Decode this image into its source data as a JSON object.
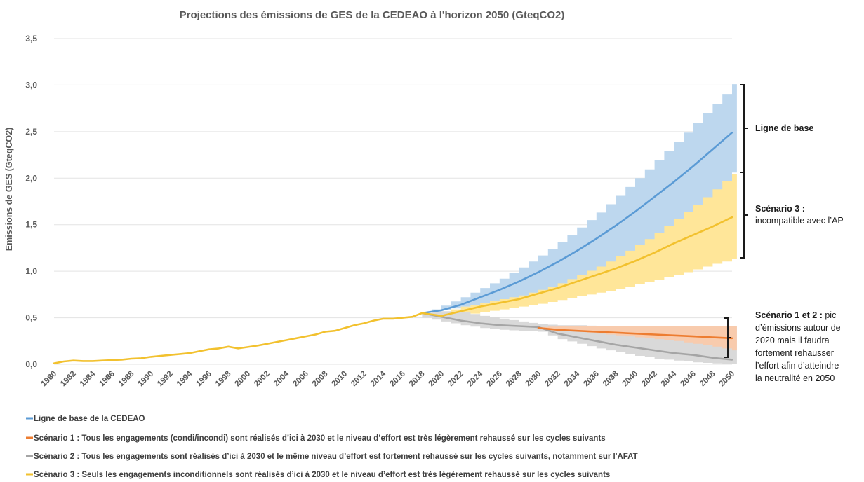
{
  "chart_data": {
    "type": "line",
    "title": "Projections des émissions de GES de la CEDEAO à l'horizon 2050 (GteqCO2)",
    "ylabel": "Emissions de GES (GteqCO2)",
    "xlabel": "",
    "ylim": [
      0,
      3.5
    ],
    "yticks": [
      "0,0",
      "0,5",
      "1,0",
      "1,5",
      "2,0",
      "2,5",
      "3,0",
      "3,5"
    ],
    "yticks_values": [
      0,
      0.5,
      1.0,
      1.5,
      2.0,
      2.5,
      3.0,
      3.5
    ],
    "xlim": [
      1980,
      2050
    ],
    "xticks": [
      1980,
      1982,
      1984,
      1986,
      1988,
      1990,
      1992,
      1994,
      1996,
      1998,
      2000,
      2002,
      2004,
      2006,
      2008,
      2010,
      2012,
      2014,
      2016,
      2018,
      2020,
      2022,
      2024,
      2026,
      2028,
      2030,
      2032,
      2034,
      2036,
      2038,
      2040,
      2042,
      2044,
      2046,
      2048,
      2050
    ],
    "grid": true,
    "legend_position": "bottom",
    "historical": {
      "years": [
        1980,
        1981,
        1982,
        1983,
        1984,
        1985,
        1986,
        1987,
        1988,
        1989,
        1990,
        1991,
        1992,
        1993,
        1994,
        1995,
        1996,
        1997,
        1998,
        1999,
        2000,
        2001,
        2002,
        2003,
        2004,
        2005,
        2006,
        2007,
        2008,
        2009,
        2010,
        2011,
        2012,
        2013,
        2014,
        2015,
        2016,
        2017,
        2018
      ],
      "values": [
        0.01,
        0.03,
        0.04,
        0.035,
        0.035,
        0.04,
        0.045,
        0.05,
        0.06,
        0.065,
        0.08,
        0.09,
        0.1,
        0.11,
        0.12,
        0.14,
        0.16,
        0.17,
        0.19,
        0.17,
        0.185,
        0.2,
        0.22,
        0.24,
        0.26,
        0.28,
        0.3,
        0.32,
        0.35,
        0.36,
        0.39,
        0.42,
        0.44,
        0.47,
        0.49,
        0.49,
        0.5,
        0.51,
        0.55
      ]
    },
    "series": [
      {
        "name": "Ligne de base de la CEDEAO",
        "color": "#5b9bd5",
        "band_color": "#bdd7ee",
        "x": [
          2018,
          2020,
          2022,
          2024,
          2026,
          2028,
          2030,
          2032,
          2034,
          2036,
          2038,
          2040,
          2042,
          2044,
          2046,
          2048,
          2050
        ],
        "values": [
          0.55,
          0.58,
          0.64,
          0.72,
          0.8,
          0.89,
          0.99,
          1.1,
          1.22,
          1.35,
          1.49,
          1.64,
          1.8,
          1.96,
          2.13,
          2.31,
          2.49
        ],
        "band_low": [
          0.55,
          0.58,
          0.62,
          0.66,
          0.7,
          0.74,
          0.8,
          0.87,
          0.96,
          1.05,
          1.16,
          1.28,
          1.41,
          1.56,
          1.71,
          1.88,
          2.06
        ],
        "band_high": [
          0.55,
          0.63,
          0.72,
          0.82,
          0.92,
          1.04,
          1.17,
          1.31,
          1.47,
          1.63,
          1.81,
          2.0,
          2.19,
          2.39,
          2.59,
          2.8,
          3.01
        ]
      },
      {
        "name": "Scénario 1 : Tous les engagements (condi/incondi) sont réalisés d’ici à 2030 et le niveau d’effort est très légèrement rehaussé sur les cycles suivants",
        "color": "#ed7d31",
        "band_color": "#f8cbad",
        "x": [
          2030,
          2032,
          2034,
          2036,
          2038,
          2040,
          2042,
          2044,
          2046,
          2048,
          2050
        ],
        "values": [
          0.39,
          0.37,
          0.36,
          0.35,
          0.34,
          0.33,
          0.32,
          0.31,
          0.3,
          0.29,
          0.28
        ],
        "band_low": [
          0.39,
          0.37,
          0.35,
          0.33,
          0.31,
          0.29,
          0.27,
          0.25,
          0.22,
          0.19,
          0.15
        ],
        "band_high": [
          0.4,
          0.41,
          0.41,
          0.41,
          0.41,
          0.41,
          0.41,
          0.41,
          0.41,
          0.41,
          0.41
        ]
      },
      {
        "name": "Scénario 2 : Tous les engagements sont réalisés d’ici à 2030 et le même niveau d’effort est fortement rehaussé sur les cycles suivants, notamment sur l'AFAT",
        "color": "#a5a5a5",
        "band_color": "#d9d9d9",
        "x": [
          2018,
          2020,
          2022,
          2024,
          2026,
          2028,
          2030,
          2032,
          2034,
          2036,
          2038,
          2040,
          2042,
          2044,
          2046,
          2048,
          2050
        ],
        "values": [
          0.55,
          0.51,
          0.47,
          0.44,
          0.42,
          0.41,
          0.4,
          0.33,
          0.29,
          0.25,
          0.21,
          0.18,
          0.15,
          0.12,
          0.1,
          0.07,
          0.05
        ],
        "band_low": [
          0.5,
          0.46,
          0.42,
          0.39,
          0.37,
          0.36,
          0.35,
          0.27,
          0.22,
          0.17,
          0.13,
          0.09,
          0.06,
          0.04,
          0.02,
          0.01,
          0.0
        ],
        "band_high": [
          0.55,
          0.57,
          0.56,
          0.52,
          0.49,
          0.46,
          0.43,
          0.42,
          0.42,
          0.41,
          0.41,
          0.41,
          0.41,
          0.41,
          0.41,
          0.41,
          0.41
        ]
      },
      {
        "name": "Scénario 3 : Seuls les engagements inconditionnels sont réalisés d’ici à 2030 et le niveau d’effort est très légèrement rehaussé sur les cycles suivants",
        "color": "#f2c12e",
        "band_color": "#ffe699",
        "x": [
          2018,
          2020,
          2022,
          2024,
          2026,
          2028,
          2030,
          2032,
          2034,
          2036,
          2038,
          2040,
          2042,
          2044,
          2046,
          2048,
          2050
        ],
        "values": [
          0.55,
          0.52,
          0.57,
          0.62,
          0.66,
          0.7,
          0.76,
          0.82,
          0.89,
          0.96,
          1.03,
          1.11,
          1.2,
          1.3,
          1.39,
          1.48,
          1.58
        ],
        "band_low": [
          0.55,
          0.52,
          0.53,
          0.56,
          0.59,
          0.62,
          0.65,
          0.69,
          0.73,
          0.77,
          0.81,
          0.86,
          0.91,
          0.96,
          1.02,
          1.08,
          1.13
        ],
        "band_high": [
          0.55,
          0.56,
          0.62,
          0.69,
          0.76,
          0.84,
          0.93,
          1.03,
          1.13,
          1.24,
          1.35,
          1.47,
          1.59,
          1.72,
          1.86,
          1.96,
          2.04
        ]
      }
    ]
  },
  "annotations": {
    "baseline": {
      "title": "Ligne de base"
    },
    "scenario3": {
      "title": "Scénario 3 :",
      "lines": [
        "incompatible avec l’AP"
      ]
    },
    "scenario12": {
      "title": "Scénario 1 et 2 :",
      "title_rest": " pic",
      "lines": [
        "d’émissions autour de",
        "2020 mais il faudra",
        "fortement  rehausser",
        "l’effort afin d’atteindre",
        "la neutralité en 2050"
      ]
    }
  }
}
